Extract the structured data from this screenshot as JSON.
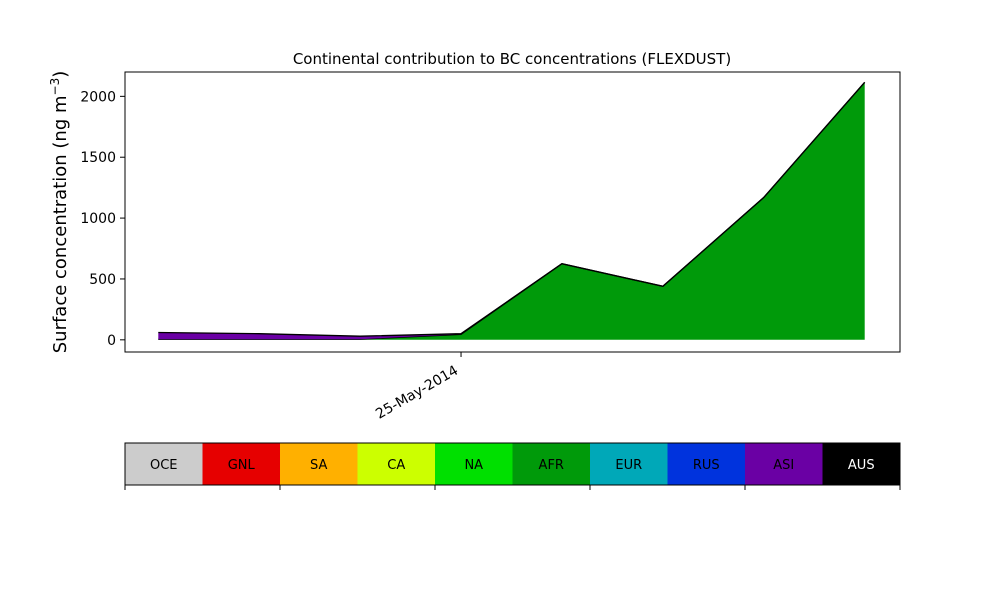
{
  "chart_data": {
    "type": "area",
    "title": "Continental contribution to BC concentrations (FLEXDUST)",
    "ylabel_main": "Surface concentration (ng m",
    "ylabel_sup": "−3",
    "ylabel_close": ")",
    "xlabel": "",
    "x_tick_labels": [
      {
        "label": "25-May-2014",
        "index": 3
      }
    ],
    "ylim": [
      -100,
      2200
    ],
    "yticks": [
      0,
      500,
      1000,
      1500,
      2000
    ],
    "grid": false,
    "x": [
      0,
      1,
      2,
      3,
      4,
      5,
      6,
      7
    ],
    "series": [
      {
        "name": "AFR",
        "color": "#009a0a",
        "values": [
          5,
          5,
          5,
          45,
          625,
          440,
          1170,
          2115
        ]
      },
      {
        "name": "ASI",
        "color": "#6a00a4",
        "values": [
          55,
          45,
          25,
          5,
          0,
          0,
          0,
          0
        ]
      }
    ],
    "legend": {
      "placement": "bottom",
      "items": [
        {
          "label": "OCE",
          "color": "#cccccc",
          "text_color": "#000000"
        },
        {
          "label": "GNL",
          "color": "#e60000",
          "text_color": "#000000"
        },
        {
          "label": "SA",
          "color": "#ffb000",
          "text_color": "#000000"
        },
        {
          "label": "CA",
          "color": "#ccff00",
          "text_color": "#000000"
        },
        {
          "label": "NA",
          "color": "#00e000",
          "text_color": "#000000"
        },
        {
          "label": "AFR",
          "color": "#009a0a",
          "text_color": "#000000"
        },
        {
          "label": "EUR",
          "color": "#00a8b8",
          "text_color": "#000000"
        },
        {
          "label": "RUS",
          "color": "#0033dd",
          "text_color": "#000000"
        },
        {
          "label": "ASI",
          "color": "#6a00a4",
          "text_color": "#000000"
        },
        {
          "label": "AUS",
          "color": "#000000",
          "text_color": "#ffffff"
        }
      ]
    }
  }
}
